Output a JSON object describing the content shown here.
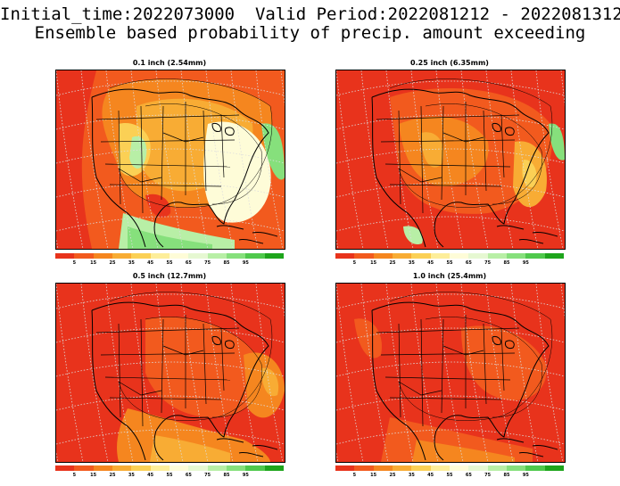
{
  "header": {
    "line1": "Initial_time:2022073000  Valid Period:2022081212 - 2022081312",
    "line2": "Ensemble based probability of precip. amount exceeding"
  },
  "panels": [
    {
      "title": "0.1 inch (2.54mm)",
      "variant": "light"
    },
    {
      "title": "0.25 inch (6.35mm)",
      "variant": "medium"
    },
    {
      "title": "0.5 inch (12.7mm)",
      "variant": "heavy"
    },
    {
      "title": "1.0 inch (25.4mm)",
      "variant": "heaviest"
    }
  ],
  "colorbar": {
    "colors": [
      "#e8331c",
      "#f25a1e",
      "#f5861f",
      "#f8ac34",
      "#fbd055",
      "#fdee9a",
      "#fefcd8",
      "#e6f8d2",
      "#b8efa6",
      "#86e07c",
      "#4fc94c",
      "#1ea51c"
    ],
    "labels": [
      "5",
      "15",
      "25",
      "35",
      "45",
      "55",
      "65",
      "75",
      "85",
      "95"
    ]
  }
}
